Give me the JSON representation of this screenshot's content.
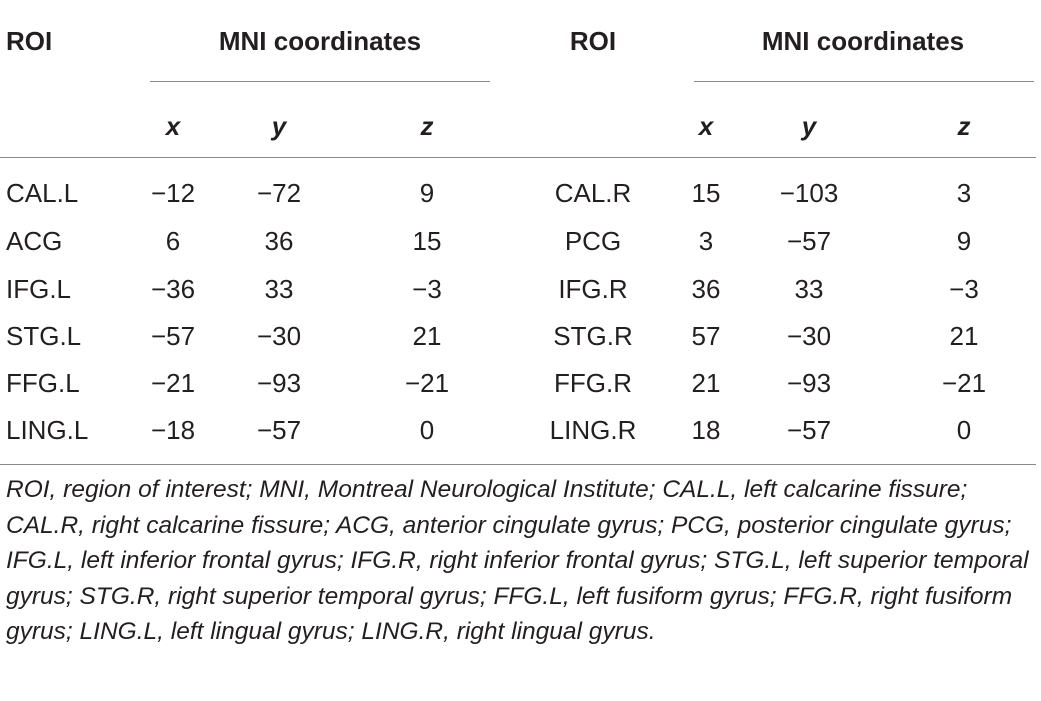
{
  "table": {
    "header": {
      "left_roi": "ROI",
      "left_mni": "MNI coordinates",
      "right_roi": "ROI",
      "right_mni": "MNI coordinates"
    },
    "subheader": {
      "left": [
        "x",
        "y",
        "z"
      ],
      "right": [
        "x",
        "y",
        "z"
      ]
    },
    "rows": [
      {
        "left_roi": "CAL.L",
        "left": [
          "−12",
          "−72",
          "9"
        ],
        "right_roi": "CAL.R",
        "right": [
          "15",
          "−103",
          "3"
        ]
      },
      {
        "left_roi": "ACG",
        "left": [
          "6",
          "36",
          "15"
        ],
        "right_roi": "PCG",
        "right": [
          "3",
          "−57",
          "9"
        ]
      },
      {
        "left_roi": "IFG.L",
        "left": [
          "−36",
          "33",
          "−3"
        ],
        "right_roi": "IFG.R",
        "right": [
          "36",
          "33",
          "−3"
        ]
      },
      {
        "left_roi": "STG.L",
        "left": [
          "−57",
          "−30",
          "21"
        ],
        "right_roi": "STG.R",
        "right": [
          "57",
          "−30",
          "21"
        ]
      },
      {
        "left_roi": "FFG.L",
        "left": [
          "−21",
          "−93",
          "−21"
        ],
        "right_roi": "FFG.R",
        "right": [
          "21",
          "−93",
          "−21"
        ]
      },
      {
        "left_roi": "LING.L",
        "left": [
          "−18",
          "−57",
          "0"
        ],
        "right_roi": "LING.R",
        "right": [
          "18",
          "−57",
          "0"
        ]
      }
    ]
  },
  "footnote": "ROI, region of interest; MNI, Montreal Neurological Institute; CAL.L, left calcarine fissure; CAL.R, right calcarine fissure; ACG, anterior cingulate gyrus; PCG, posterior cingulate gyrus; IFG.L, left inferior frontal gyrus; IFG.R, right inferior frontal gyrus; STG.L, left superior temporal gyrus; STG.R, right superior temporal gyrus; FFG.L, left fusiform gyrus; FFG.R, right fusiform gyrus; LING.L, left lingual gyrus; LING.R, right lingual gyrus."
}
